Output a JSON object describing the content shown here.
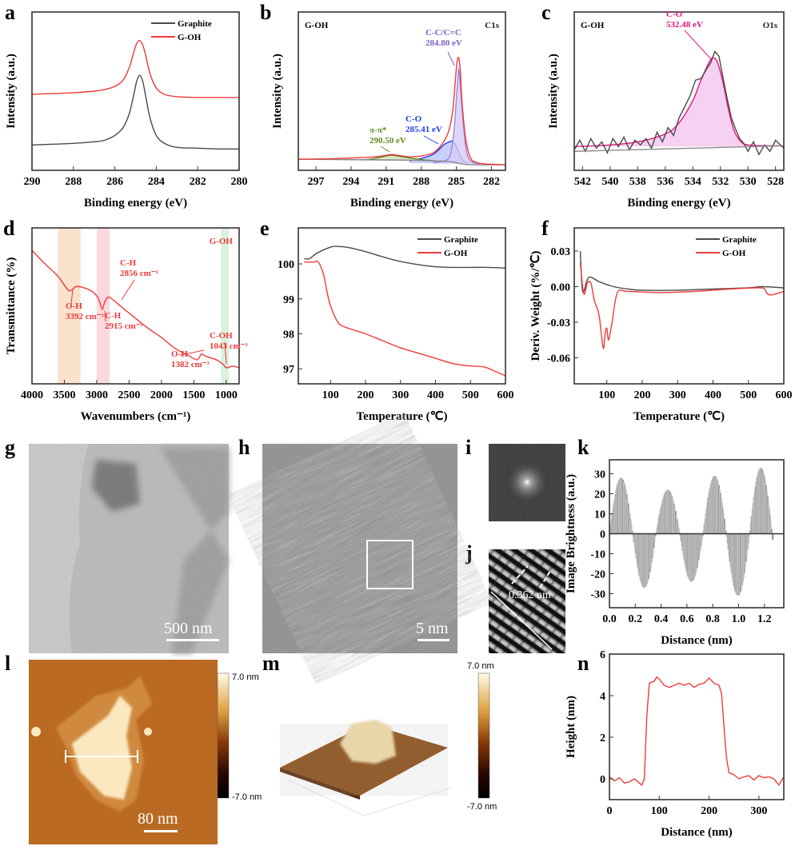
{
  "panel_labels": [
    "a",
    "b",
    "c",
    "d",
    "e",
    "f",
    "g",
    "h",
    "i",
    "j",
    "k",
    "l",
    "m",
    "n"
  ],
  "colors": {
    "graphite": "#4a4a4a",
    "goh": "#f03a3a",
    "cc": "#7c62c8",
    "co": "#1f3df0",
    "pipi": "#5e8a1e",
    "co_o1s": "#e3167f",
    "fill_o1s": "#f4c6ef"
  },
  "chart_data": [
    {
      "panel": "a",
      "type": "line",
      "xlabel": "Binding energy (eV)",
      "ylabel": "Intensity (a.u.)",
      "xlim": [
        290,
        280
      ],
      "ylim": [
        0,
        1
      ],
      "xticks": [
        290,
        288,
        286,
        284,
        282,
        280
      ],
      "yticks": [],
      "legend": "top-right",
      "series": [
        {
          "name": "Graphite",
          "color": "#4a4a4a",
          "x": [
            290,
            289,
            288,
            287,
            286.5,
            286,
            285.6,
            285.3,
            285.1,
            284.95,
            284.8,
            284.65,
            284.5,
            284.3,
            284,
            283.6,
            283,
            282,
            281,
            280
          ],
          "y": [
            0.16,
            0.165,
            0.17,
            0.18,
            0.19,
            0.22,
            0.27,
            0.36,
            0.47,
            0.56,
            0.6,
            0.56,
            0.46,
            0.33,
            0.22,
            0.17,
            0.145,
            0.14,
            0.135,
            0.135
          ]
        },
        {
          "name": "G-OH",
          "color": "#f03a3a",
          "x": [
            290,
            289,
            288,
            287,
            286.5,
            286,
            285.6,
            285.3,
            285.1,
            284.95,
            284.8,
            284.65,
            284.5,
            284.3,
            284,
            283.6,
            283,
            282,
            281,
            280
          ],
          "y": [
            0.48,
            0.485,
            0.49,
            0.5,
            0.51,
            0.53,
            0.57,
            0.65,
            0.74,
            0.8,
            0.82,
            0.79,
            0.72,
            0.61,
            0.52,
            0.48,
            0.465,
            0.46,
            0.46,
            0.46
          ]
        }
      ]
    },
    {
      "panel": "b",
      "type": "line",
      "xlabel": "Binding energy (eV)",
      "ylabel": "Intensity (a.u.)",
      "xlim": [
        298.5,
        280.8
      ],
      "ylim": [
        0,
        1
      ],
      "xticks": [
        297,
        294,
        291,
        288,
        285,
        282
      ],
      "yticks": [],
      "corner_left": "G-OH",
      "corner_right": "C1s",
      "annotations": [
        {
          "lines": [
            "C-C/C=C",
            "284.80 eV"
          ],
          "color": "#7c62c8"
        },
        {
          "lines": [
            "C-O",
            "285.41 eV"
          ],
          "color": "#1f3df0"
        },
        {
          "lines": [
            "π-π*",
            "290.50 eV"
          ],
          "color": "#5e8a1e"
        }
      ],
      "series": [
        {
          "color": "#1f3df0",
          "fill": "#b9c6f6",
          "x": [
            289,
            288,
            287,
            286.5,
            286,
            285.6,
            285.41,
            285.2,
            285,
            284.7,
            284.4,
            284
          ],
          "y": [
            0.06,
            0.075,
            0.1,
            0.13,
            0.165,
            0.18,
            0.185,
            0.175,
            0.15,
            0.1,
            0.06,
            0.045
          ]
        },
        {
          "color": "#9b86e0",
          "fill": "#d6ccf4",
          "x": [
            287,
            286,
            285.5,
            285.2,
            285,
            284.85,
            284.8,
            284.7,
            284.5,
            284.2,
            283.8,
            283
          ],
          "y": [
            0.05,
            0.06,
            0.1,
            0.25,
            0.45,
            0.6,
            0.64,
            0.58,
            0.38,
            0.15,
            0.06,
            0.04
          ]
        },
        {
          "color": "#5e8a1e",
          "fill": "#cfe0b8",
          "x": [
            293,
            292,
            291,
            290.5,
            290,
            289,
            288,
            287
          ],
          "y": [
            0.065,
            0.075,
            0.09,
            0.095,
            0.09,
            0.078,
            0.068,
            0.062
          ]
        },
        {
          "color": "#8a8a8a",
          "x": [
            298.5,
            290,
            287,
            285.5,
            284.5,
            283.5,
            280.8
          ],
          "y": [
            0.07,
            0.065,
            0.06,
            0.055,
            0.04,
            0.035,
            0.035
          ]
        },
        {
          "color": "#f03a3a",
          "x": [
            298.5,
            295,
            292,
            291,
            290.5,
            290,
            289,
            288,
            287,
            286.5,
            286,
            285.6,
            285.3,
            285.1,
            284.95,
            284.8,
            284.65,
            284.5,
            284.2,
            283.8,
            283.3,
            282.5,
            280.8
          ],
          "y": [
            0.07,
            0.075,
            0.085,
            0.095,
            0.1,
            0.095,
            0.085,
            0.09,
            0.11,
            0.14,
            0.19,
            0.26,
            0.38,
            0.55,
            0.68,
            0.71,
            0.62,
            0.42,
            0.2,
            0.08,
            0.05,
            0.04,
            0.035
          ]
        }
      ]
    },
    {
      "panel": "c",
      "type": "line",
      "xlabel": "Binding energy (eV)",
      "ylabel": "Intensity (a.u.)",
      "xlim": [
        542.6,
        527.4
      ],
      "ylim": [
        0,
        1
      ],
      "xticks": [
        542,
        540,
        538,
        536,
        534,
        532,
        530,
        528
      ],
      "yticks": [],
      "corner_left": "G-OH",
      "corner_right": "O1s",
      "annotations": [
        {
          "lines": [
            "C-O",
            "532.48 eV"
          ],
          "color": "#e3167f"
        }
      ],
      "series": [
        {
          "color": "#e3167f",
          "fill": "#f4c6ef",
          "x": [
            542.6,
            540,
            538,
            536,
            535,
            534,
            533.5,
            533,
            532.7,
            532.48,
            532.2,
            531.8,
            531.4,
            531,
            530.5,
            530,
            529,
            527.4
          ],
          "y": [
            0.15,
            0.16,
            0.18,
            0.23,
            0.3,
            0.44,
            0.55,
            0.65,
            0.7,
            0.71,
            0.68,
            0.55,
            0.38,
            0.25,
            0.18,
            0.16,
            0.155,
            0.155
          ]
        },
        {
          "color": "#4a4a4a",
          "raw": true,
          "x": [
            542.6,
            542.2,
            541.8,
            541.4,
            541,
            540.6,
            540.2,
            539.8,
            539.4,
            539,
            538.6,
            538.2,
            537.8,
            537.4,
            537,
            536.6,
            536.2,
            535.8,
            535.4,
            535,
            534.6,
            534.2,
            533.8,
            533.4,
            533,
            532.7,
            532.4,
            532.1,
            531.8,
            531.5,
            531.2,
            530.9,
            530.6,
            530.3,
            530,
            529.6,
            529.2,
            528.8,
            528.4,
            528,
            527.4
          ],
          "y": [
            0.13,
            0.19,
            0.12,
            0.2,
            0.14,
            0.18,
            0.11,
            0.2,
            0.15,
            0.21,
            0.13,
            0.19,
            0.16,
            0.2,
            0.14,
            0.24,
            0.18,
            0.27,
            0.22,
            0.33,
            0.4,
            0.47,
            0.57,
            0.58,
            0.64,
            0.68,
            0.75,
            0.72,
            0.58,
            0.45,
            0.33,
            0.26,
            0.2,
            0.17,
            0.12,
            0.18,
            0.1,
            0.16,
            0.12,
            0.19,
            0.14
          ]
        },
        {
          "color": "#8a8a8a",
          "x": [
            542.6,
            527.4
          ],
          "y": [
            0.12,
            0.155
          ]
        }
      ]
    },
    {
      "panel": "d",
      "type": "line",
      "xlabel": "Wavenumbers (cm⁻¹)",
      "ylabel": "Transmittance (%)",
      "xlim": [
        4000,
        800
      ],
      "ylim": [
        0,
        1
      ],
      "xticks": [
        4000,
        3500,
        3000,
        2500,
        2000,
        1500,
        1000
      ],
      "yticks": [],
      "corner_right": "G-OH",
      "bands": [
        {
          "from": 3600,
          "to": 3250,
          "color": "#fbe2cc"
        },
        {
          "from": 3000,
          "to": 2800,
          "color": "#fbd8de"
        },
        {
          "from": 1080,
          "to": 960,
          "color": "#d8f2dc"
        }
      ],
      "annotations": [
        {
          "lines": [
            "C-H",
            "2856 cm⁻¹"
          ]
        },
        {
          "lines": [
            "O-H",
            "3392 cm⁻¹"
          ]
        },
        {
          "lines": [
            "C-H",
            "2915 cm⁻¹"
          ]
        },
        {
          "lines": [
            "C-OH",
            "1043 cm⁻¹"
          ]
        },
        {
          "lines": [
            "O-H",
            "1382 cm⁻¹"
          ]
        }
      ],
      "series": [
        {
          "color": "#f03a3a",
          "x": [
            4000,
            3800,
            3600,
            3450,
            3392,
            3300,
            3100,
            3000,
            2950,
            2915,
            2880,
            2856,
            2800,
            2600,
            2400,
            2200,
            2000,
            1800,
            1600,
            1450,
            1382,
            1300,
            1150,
            1043,
            1000,
            900,
            800
          ],
          "y": [
            0.856,
            0.77,
            0.69,
            0.605,
            0.6,
            0.625,
            0.6,
            0.564,
            0.52,
            0.477,
            0.52,
            0.538,
            0.554,
            0.487,
            0.42,
            0.354,
            0.297,
            0.23,
            0.185,
            0.154,
            0.19,
            0.174,
            0.154,
            0.123,
            0.103,
            0.113,
            0.103
          ]
        }
      ]
    },
    {
      "panel": "e",
      "type": "line",
      "xlabel": "Temperature (℃)",
      "ylabel": "",
      "xlim": [
        8,
        600
      ],
      "ylim": [
        96.57,
        101.03
      ],
      "xticks": [
        100,
        200,
        300,
        400,
        500,
        600
      ],
      "yticks": [
        97,
        98,
        99,
        100
      ],
      "legend": "top-right",
      "series": [
        {
          "name": "Graphite",
          "color": "#4a4a4a",
          "x": [
            25,
            40,
            60,
            100,
            120,
            150,
            200,
            250,
            300,
            350,
            400,
            450,
            500,
            550,
            600
          ],
          "y": [
            100.15,
            100.15,
            100.3,
            100.48,
            100.5,
            100.47,
            100.35,
            100.2,
            100.07,
            99.98,
            99.92,
            99.9,
            99.9,
            99.9,
            99.88
          ]
        },
        {
          "name": "G-OH",
          "color": "#f03a3a",
          "x": [
            25,
            50,
            65,
            80,
            90,
            100,
            120,
            140,
            200,
            250,
            300,
            350,
            400,
            450,
            500,
            540,
            570,
            600
          ],
          "y": [
            100.05,
            100.05,
            100.05,
            99.7,
            99.2,
            98.8,
            98.35,
            98.2,
            98.0,
            97.8,
            97.6,
            97.45,
            97.3,
            97.15,
            97.08,
            97.05,
            96.93,
            96.8
          ]
        }
      ]
    },
    {
      "panel": "f",
      "type": "line",
      "xlabel": "Temperature (℃)",
      "ylabel": "Deriv. Weight (%/℃)",
      "xlim": [
        8,
        600
      ],
      "ylim": [
        -0.082,
        0.0496
      ],
      "xticks": [
        100,
        200,
        300,
        400,
        500,
        600
      ],
      "yticks": [
        -0.06,
        -0.03,
        0.0,
        0.03
      ],
      "yticklabels": [
        "-0.06",
        "-0.03",
        "0.00",
        "0.03"
      ],
      "legend": "top-right",
      "series": [
        {
          "name": "Graphite",
          "color": "#4a4a4a",
          "x": [
            25,
            30,
            35,
            45,
            55,
            80,
            120,
            160,
            200,
            300,
            400,
            500,
            540,
            600
          ],
          "y": [
            0.03,
            0.0,
            -0.004,
            0.006,
            0.008,
            0.004,
            0.0,
            -0.002,
            -0.003,
            -0.003,
            -0.002,
            -0.001,
            0,
            -0.001
          ]
        },
        {
          "name": "G-OH",
          "color": "#f03a3a",
          "x": [
            25,
            35,
            45,
            55,
            65,
            75,
            80,
            90,
            95,
            100,
            105,
            115,
            130,
            160,
            250,
            350,
            450,
            530,
            545,
            560,
            600
          ],
          "y": [
            0.02,
            -0.006,
            0.003,
            0.003,
            -0.012,
            -0.02,
            -0.028,
            -0.052,
            -0.04,
            -0.035,
            -0.045,
            -0.03,
            -0.005,
            -0.004,
            -0.005,
            -0.004,
            -0.002,
            -0.001,
            -0.002,
            -0.007,
            -0.004
          ]
        }
      ]
    },
    {
      "panel": "k",
      "type": "bar",
      "xlabel": "Distance (nm)",
      "ylabel": "Image Brightness (a.u.)",
      "xlim": [
        0,
        1.35
      ],
      "ylim": [
        -37,
        37
      ],
      "xticks": [
        0.0,
        0.2,
        0.4,
        0.6,
        0.8,
        1.0,
        1.2
      ],
      "xticklabels": [
        "0.0",
        "0.2",
        "0.4",
        "0.6",
        "0.8",
        "1.0",
        "1.2"
      ],
      "yticks": [
        -30,
        -20,
        -10,
        0,
        10,
        20,
        30
      ],
      "zero_crossings": [
        0,
        0.18,
        0.36,
        0.545,
        0.725,
        0.905,
        1.085,
        1.26
      ],
      "extrema": [
        28,
        -27,
        22,
        -24,
        29,
        -31,
        33
      ],
      "tail": {
        "x": 1.265,
        "y": -3
      }
    },
    {
      "panel": "n",
      "type": "line",
      "xlabel": "Distance (nm)",
      "ylabel": "Height (nm)",
      "xlim": [
        0,
        350
      ],
      "ylim": [
        -1,
        6
      ],
      "xticks": [
        0,
        100,
        200,
        300
      ],
      "yticks": [
        0,
        2,
        4,
        6
      ],
      "series": [
        {
          "color": "#f03a3a",
          "raw": true,
          "x": [
            0,
            10,
            20,
            30,
            40,
            50,
            60,
            65,
            70,
            75,
            80,
            90,
            95,
            100,
            110,
            120,
            130,
            140,
            150,
            160,
            170,
            180,
            190,
            200,
            210,
            220,
            225,
            230,
            235,
            240,
            250,
            260,
            270,
            280,
            290,
            300,
            310,
            320,
            330,
            340,
            350
          ],
          "y": [
            0.1,
            -0.1,
            0.05,
            -0.2,
            -0.15,
            0.0,
            -0.2,
            -0.3,
            0.0,
            3.0,
            4.6,
            4.7,
            4.9,
            4.8,
            4.5,
            4.4,
            4.5,
            4.6,
            4.5,
            4.6,
            4.4,
            4.55,
            4.6,
            4.85,
            4.6,
            4.5,
            4.1,
            2.5,
            1.0,
            0.3,
            0.2,
            0.0,
            0.1,
            0.15,
            -0.05,
            0.15,
            0.05,
            0.1,
            0.0,
            -0.3,
            0.1
          ]
        }
      ]
    }
  ],
  "images": {
    "g": {
      "scale_bar": "500 nm"
    },
    "h": {
      "scale_bar": "5 nm"
    },
    "j": {
      "annotation": "0.362 nm"
    },
    "l": {
      "scale_bar": "80 nm",
      "colorbar_max": "7.0 nm",
      "colorbar_min": "-7.0 nm"
    },
    "m": {
      "colorbar_max": "7.0 nm",
      "colorbar_min": "-7.0 nm"
    }
  }
}
